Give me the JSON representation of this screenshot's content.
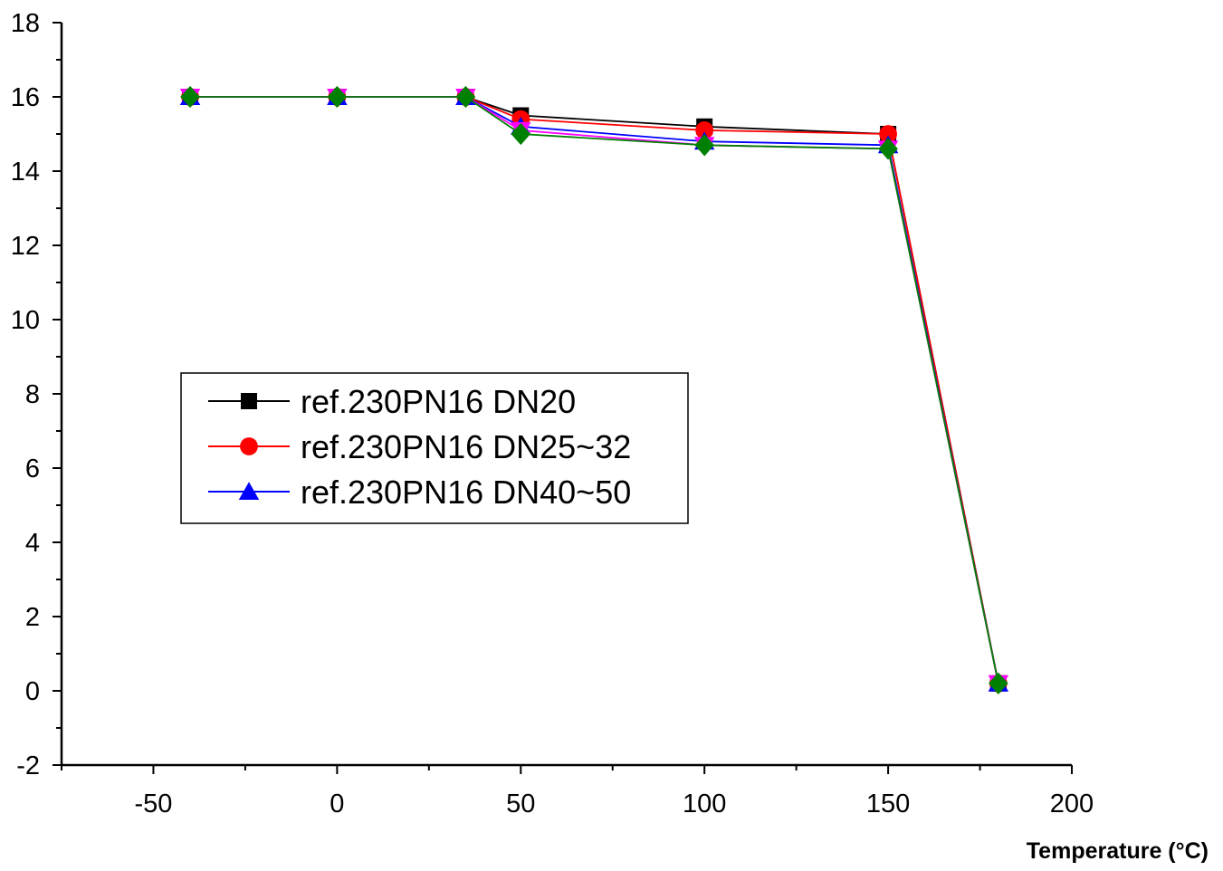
{
  "chart_data": {
    "type": "line",
    "xlabel": "Temperature (°C)",
    "ylabel": "",
    "xlim": [
      -75,
      200
    ],
    "ylim": [
      -2,
      18
    ],
    "x_ticks": [
      -50,
      0,
      50,
      100,
      150,
      200
    ],
    "y_ticks": [
      -2,
      0,
      2,
      4,
      6,
      8,
      10,
      12,
      14,
      16,
      18
    ],
    "legend_position": "center-left",
    "grid": false,
    "x": [
      -40,
      0,
      35,
      50,
      100,
      150,
      180
    ],
    "series": [
      {
        "name": "ref.230PN16 DN20",
        "color": "#000000",
        "marker": "square",
        "in_legend": true,
        "values": [
          16,
          16,
          16,
          15.5,
          15.2,
          15.0,
          0.2
        ]
      },
      {
        "name": "ref.230PN16 DN25~32",
        "color": "#ff0000",
        "marker": "circle",
        "in_legend": true,
        "values": [
          16,
          16,
          16,
          15.4,
          15.1,
          15.0,
          0.2
        ]
      },
      {
        "name": "ref.230PN16 DN40~50",
        "color": "#0000ff",
        "marker": "triangle",
        "in_legend": true,
        "values": [
          16,
          16,
          16,
          15.2,
          14.8,
          14.7,
          0.2
        ]
      },
      {
        "name": "",
        "color": "#ff00ff",
        "marker": "triangle-down",
        "in_legend": false,
        "values": [
          16,
          16,
          16,
          15.1,
          14.7,
          14.6,
          0.2
        ]
      },
      {
        "name": "",
        "color": "#008000",
        "marker": "diamond",
        "in_legend": false,
        "values": [
          16,
          16,
          16,
          15.0,
          14.7,
          14.6,
          0.2
        ]
      }
    ]
  }
}
